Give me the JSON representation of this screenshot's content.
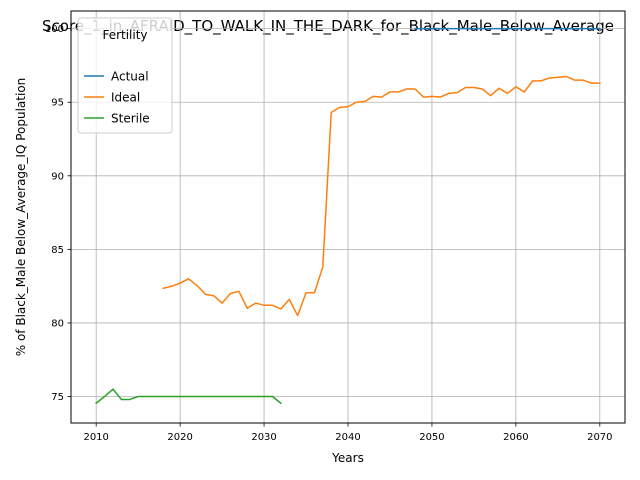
{
  "chart_data": {
    "type": "line",
    "title": "Score_1_in_AFRAID_TO_WALK_IN_THE_DARK_for_Black_Male_Below_Average",
    "xlabel": "Years",
    "ylabel": "% of Black_Male Below_Average_IQ Population",
    "xlim": [
      2007,
      2073
    ],
    "ylim": [
      73.2,
      101.2
    ],
    "xticks": [
      2010,
      2020,
      2030,
      2040,
      2050,
      2060,
      2070
    ],
    "xtick_labels": [
      "2010",
      "2020",
      "2030",
      "2040",
      "2050",
      "2060",
      "2070"
    ],
    "yticks": [
      75,
      80,
      85,
      90,
      95,
      100
    ],
    "ytick_labels": [
      "75",
      "80",
      "85",
      "90",
      "95",
      "100"
    ],
    "grid": true,
    "legend": {
      "title": "Fertility",
      "position": "upper-left"
    },
    "series": [
      {
        "name": "Actual",
        "color": "#1f77b4",
        "x": [
          2048,
          2070
        ],
        "y": [
          100,
          100
        ]
      },
      {
        "name": "Ideal",
        "color": "#ff7f0e",
        "x": [
          2018,
          2019,
          2020,
          2021,
          2022,
          2023,
          2024,
          2025,
          2026,
          2027,
          2028,
          2029,
          2030,
          2031,
          2032,
          2033,
          2034,
          2035,
          2036,
          2037,
          2038,
          2039,
          2040,
          2041,
          2042,
          2043,
          2044,
          2045,
          2046,
          2047,
          2048,
          2049,
          2050,
          2051,
          2052,
          2053,
          2054,
          2055,
          2056,
          2057,
          2058,
          2059,
          2060,
          2061,
          2062,
          2063,
          2064,
          2065,
          2066,
          2067,
          2068,
          2069,
          2070
        ],
        "y": [
          82.35,
          82.5,
          82.7,
          83.0,
          82.55,
          81.95,
          81.85,
          81.35,
          82.0,
          82.15,
          81.0,
          81.35,
          81.2,
          81.2,
          80.95,
          81.6,
          80.5,
          82.05,
          82.05,
          83.8,
          94.3,
          94.65,
          94.7,
          95.0,
          95.05,
          95.4,
          95.35,
          95.7,
          95.7,
          95.9,
          95.9,
          95.35,
          95.4,
          95.35,
          95.6,
          95.65,
          96.0,
          96.0,
          95.9,
          95.45,
          95.95,
          95.6,
          96.05,
          95.7,
          96.45,
          96.45,
          96.65,
          96.7,
          96.75,
          96.5,
          96.5,
          96.3,
          96.3
        ]
      },
      {
        "name": "Sterile",
        "color": "#2ca02c",
        "x": [
          2010,
          2011,
          2012,
          2013,
          2014,
          2015,
          2016,
          2017,
          2018,
          2019,
          2020,
          2021,
          2022,
          2023,
          2024,
          2025,
          2026,
          2027,
          2028,
          2029,
          2030,
          2031,
          2032
        ],
        "y": [
          74.55,
          75.0,
          75.5,
          74.8,
          74.8,
          75.0,
          75.0,
          75.0,
          75.0,
          75.0,
          75.0,
          75.0,
          75.0,
          75.0,
          75.0,
          75.0,
          75.0,
          75.0,
          75.0,
          75.0,
          75.0,
          75.0,
          74.55
        ]
      }
    ]
  }
}
